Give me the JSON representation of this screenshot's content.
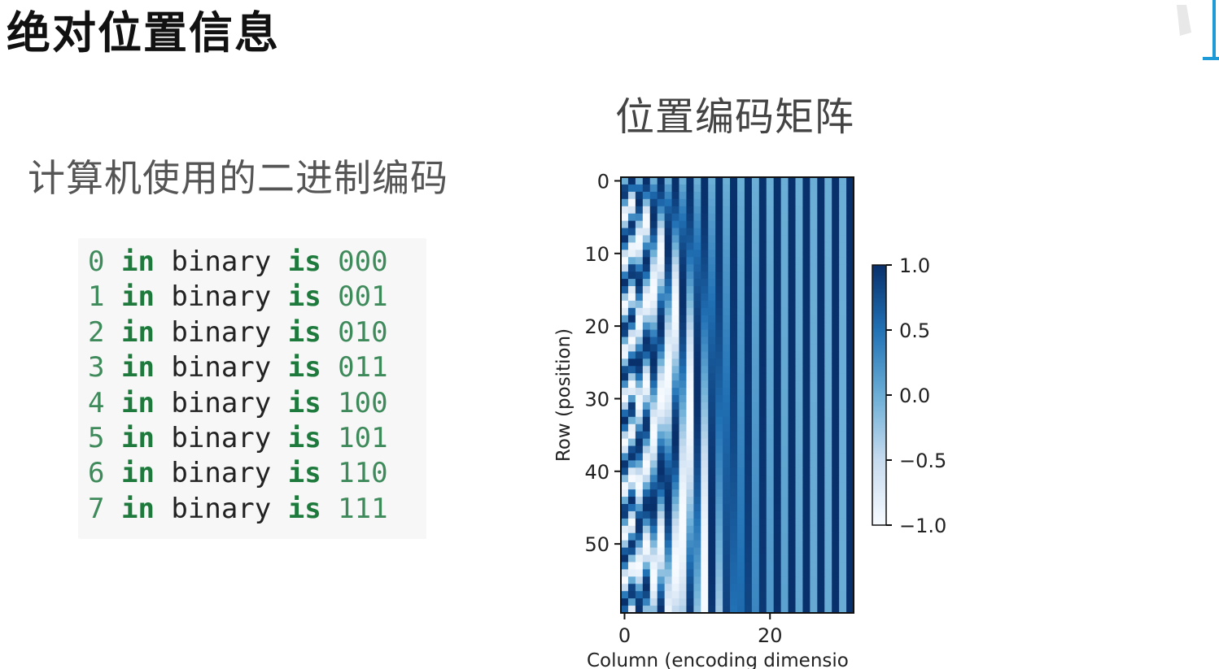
{
  "slide": {
    "title": "绝对位置信息",
    "subtitle": "计算机使用的二进制编码"
  },
  "code": {
    "keyword_in": "in",
    "word_binary": "binary",
    "keyword_is": "is",
    "lines": [
      {
        "num": "0",
        "bits": "000"
      },
      {
        "num": "1",
        "bits": "001"
      },
      {
        "num": "2",
        "bits": "010"
      },
      {
        "num": "3",
        "bits": "011"
      },
      {
        "num": "4",
        "bits": "100"
      },
      {
        "num": "5",
        "bits": "101"
      },
      {
        "num": "6",
        "bits": "110"
      },
      {
        "num": "7",
        "bits": "111"
      }
    ]
  },
  "chart_data": {
    "type": "heatmap",
    "title": "位置编码矩阵",
    "xlabel": "Column (encoding dimensio",
    "ylabel": "Row (position)",
    "rows": 60,
    "cols": 32,
    "xlim": [
      0,
      32
    ],
    "ylim": [
      0,
      60
    ],
    "x_ticks": [
      "0",
      "20"
    ],
    "y_ticks": [
      "0",
      "10",
      "20",
      "30",
      "40",
      "50"
    ],
    "colormap": "Blues",
    "color_low": "#f7fbff",
    "color_high": "#08306b",
    "colorbar_ticks": [
      "1.0",
      "0.5",
      "0.0",
      "−0.5",
      "−1.0"
    ],
    "colorbar_range": [
      -1.0,
      1.0
    ],
    "encoding": "sinusoidal (sin on even columns, cos on odd columns)"
  },
  "colors": {
    "code_number": "#3e8a5b",
    "code_keyword": "#1e7a3c",
    "logo_blue": "#1e9ad6"
  }
}
